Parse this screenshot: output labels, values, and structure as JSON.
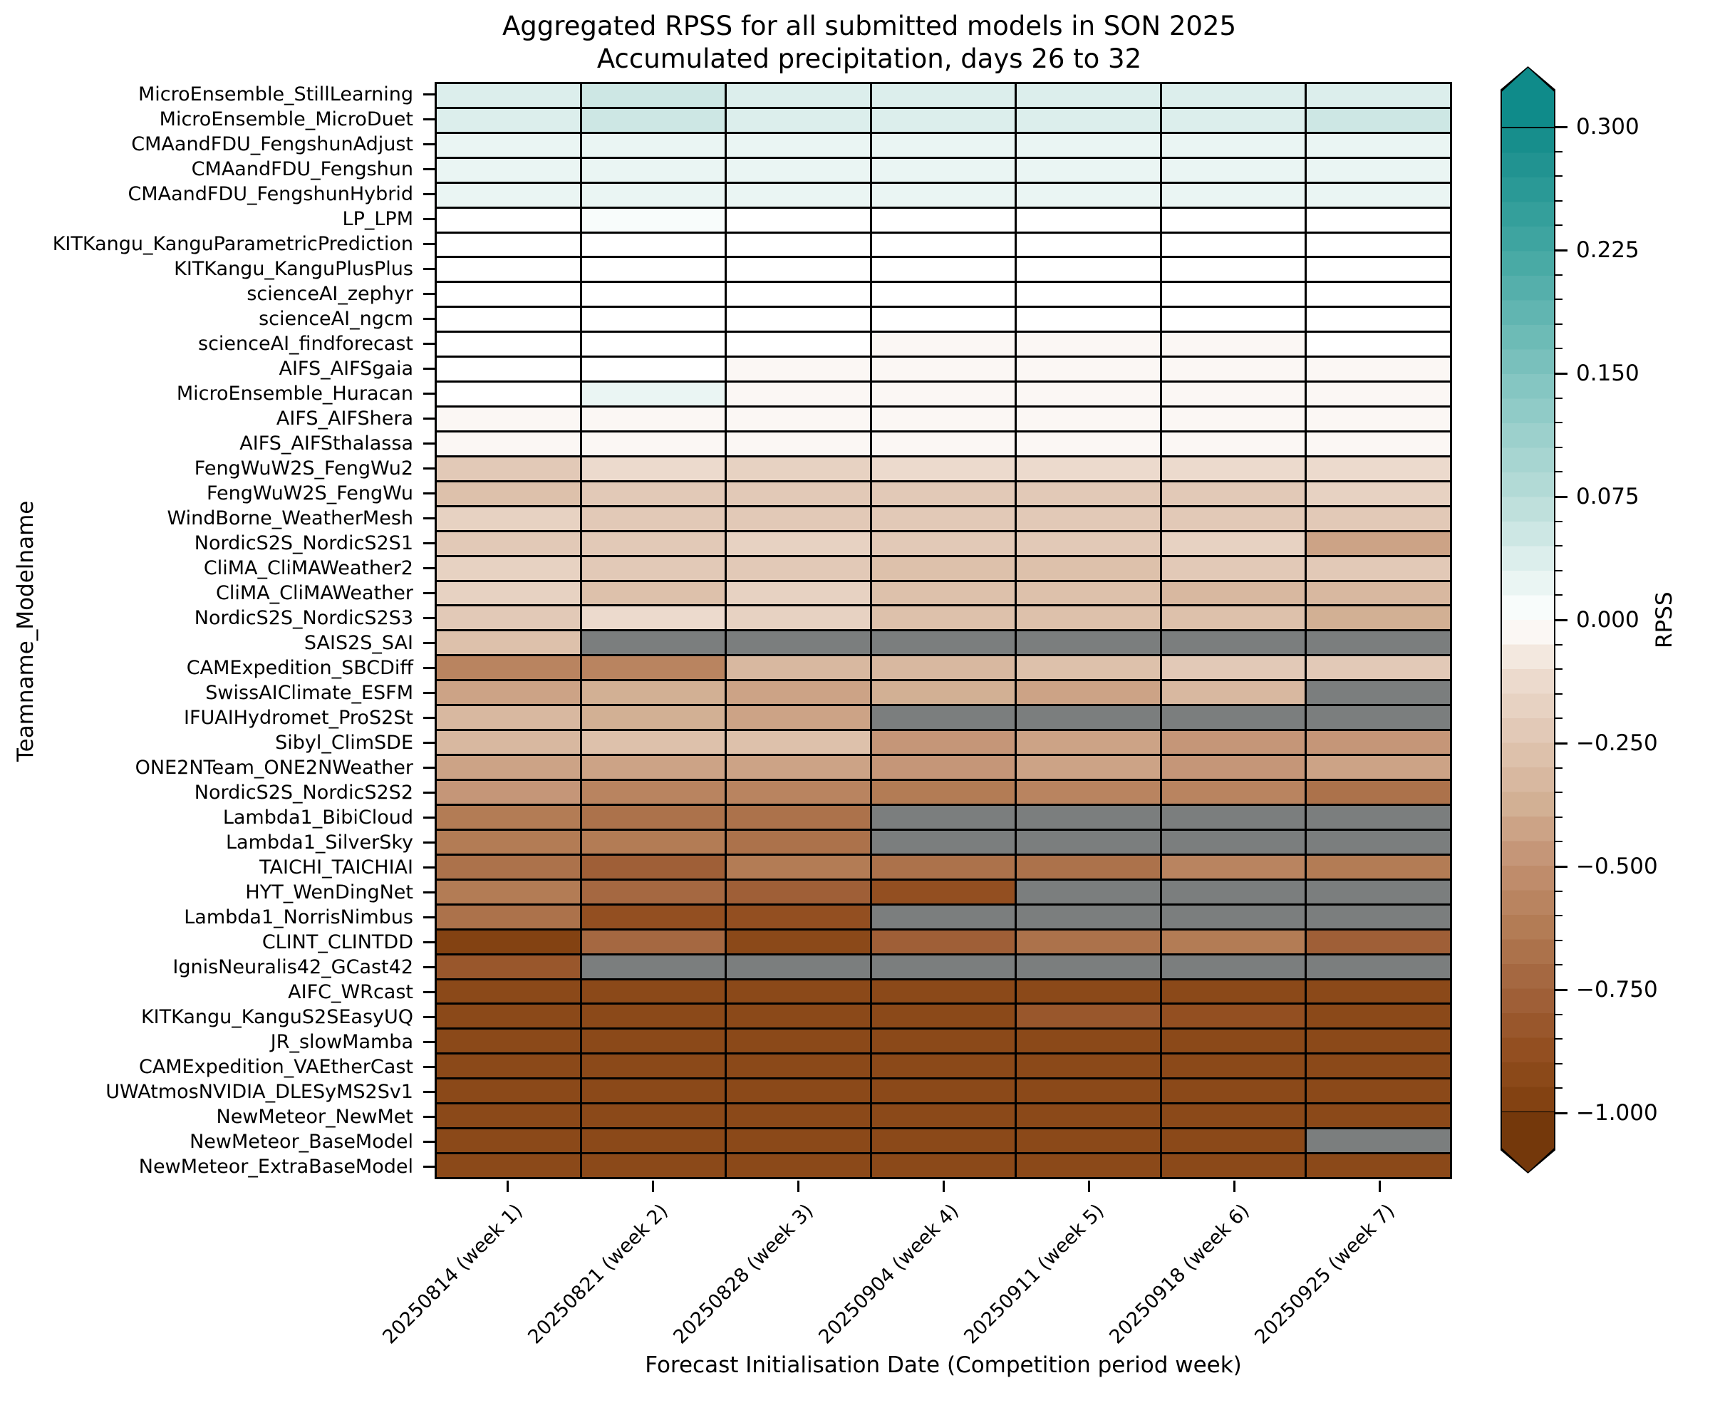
{
  "figure": {
    "title_line1": "Aggregated RPSS for all submitted models in SON 2025",
    "title_line2": "Accumulated precipitation, days 26 to 32"
  },
  "axes": {
    "x_label": "Forecast Initialisation Date (Competition period week)",
    "y_label": "Teamname_Modelname",
    "colorbar_label": "RPSS"
  },
  "colorbar": {
    "orientation": "vertical",
    "vmin": -1.0,
    "vcenter": 0.0,
    "vmax": 0.3,
    "steps_per_half": 20,
    "extend": "both",
    "major_ticks": [
      {
        "label": "0.300",
        "value": 0.3
      },
      {
        "label": "0.225",
        "value": 0.225
      },
      {
        "label": "0.150",
        "value": 0.15
      },
      {
        "label": "0.075",
        "value": 0.075
      },
      {
        "label": "0.000",
        "value": 0.0
      },
      {
        "label": "−0.250",
        "value": -0.25
      },
      {
        "label": "−0.500",
        "value": -0.5
      },
      {
        "label": "−0.750",
        "value": -0.75
      },
      {
        "label": "−1.000",
        "value": -1.0
      }
    ],
    "minor_ticks_per_interval": 4,
    "colors": {
      "positive_anchors": [
        [
          0.0,
          "#ffffff"
        ],
        [
          0.075,
          "#b8dcd8"
        ],
        [
          0.15,
          "#7fc3bf"
        ],
        [
          0.225,
          "#43a7a2"
        ],
        [
          0.3,
          "#128b8a"
        ]
      ],
      "negative_anchors": [
        [
          0.0,
          "#ffffff"
        ],
        [
          0.0625,
          "#f5ebe4"
        ],
        [
          0.125,
          "#ecdacd"
        ],
        [
          0.25,
          "#e0c5b1"
        ],
        [
          0.375,
          "#d2b094"
        ],
        [
          0.5,
          "#c29071"
        ],
        [
          0.625,
          "#b37c55"
        ],
        [
          0.75,
          "#a2633c"
        ],
        [
          0.875,
          "#934f21"
        ],
        [
          1.0,
          "#7f3f0e"
        ]
      ],
      "over_color": "#0f8b8a",
      "under_color": "#74380b",
      "missing_color": "#7b7e7e",
      "gridline_color": "#000000"
    }
  },
  "chart_data": {
    "type": "heatmap",
    "title": "Aggregated RPSS for all submitted models in SON 2025 — Accumulated precipitation, days 26 to 32",
    "xlabel": "Forecast Initialisation Date (Competition period week)",
    "ylabel": "Teamname_Modelname",
    "value_name": "RPSS",
    "missing_value": null,
    "x": [
      "20250814 (week 1)",
      "20250821 (week 2)",
      "20250828 (week 3)",
      "20250904 (week 4)",
      "20250911 (week 5)",
      "20250918 (week 6)",
      "20250925 (week 7)"
    ],
    "rows": [
      {
        "model": "MicroEnsemble_StillLearning",
        "values": [
          0.035,
          0.05,
          0.034,
          0.034,
          0.035,
          0.035,
          0.044
        ]
      },
      {
        "model": "MicroEnsemble_MicroDuet",
        "values": [
          0.038,
          0.056,
          0.038,
          0.04,
          0.038,
          0.038,
          0.045
        ]
      },
      {
        "model": "CMAandFDU_FengshunAdjust",
        "values": [
          0.022,
          0.022,
          0.02,
          0.022,
          0.022,
          0.02,
          0.024
        ]
      },
      {
        "model": "CMAandFDU_Fengshun",
        "values": [
          0.02,
          0.022,
          0.022,
          0.024,
          0.022,
          0.02,
          0.022
        ]
      },
      {
        "model": "CMAandFDU_FengshunHybrid",
        "values": [
          0.022,
          0.024,
          0.02,
          0.022,
          0.022,
          0.02,
          0.022
        ]
      },
      {
        "model": "LP_LPM",
        "values": [
          0.0,
          0.012,
          0.0,
          0.0,
          0.0,
          0.0,
          0.0
        ]
      },
      {
        "model": "KITKangu_KanguParametricPrediction",
        "values": [
          0.0,
          0.0,
          0.0,
          0.0,
          0.0,
          0.0,
          0.0
        ]
      },
      {
        "model": "KITKangu_KanguPlusPlus",
        "values": [
          0.0,
          0.0,
          0.0,
          0.0,
          0.0,
          0.0,
          0.0
        ]
      },
      {
        "model": "scienceAI_zephyr",
        "values": [
          0.0,
          0.0,
          0.0,
          0.0,
          0.0,
          0.0,
          0.0
        ]
      },
      {
        "model": "scienceAI_ngcm",
        "values": [
          0.0,
          0.0,
          0.0,
          0.0,
          0.0,
          0.0,
          0.0
        ]
      },
      {
        "model": "scienceAI_findforecast",
        "values": [
          0.0,
          0.0,
          0.0,
          -0.02,
          -0.022,
          -0.02,
          0.0
        ]
      },
      {
        "model": "AIFS_AIFSgaia",
        "values": [
          0.0,
          0.0,
          -0.02,
          -0.02,
          -0.02,
          -0.022,
          -0.02
        ]
      },
      {
        "model": "MicroEnsemble_Huracan",
        "values": [
          0.0,
          0.016,
          -0.02,
          -0.022,
          -0.02,
          -0.02,
          -0.022
        ]
      },
      {
        "model": "AIFS_AIFShera",
        "values": [
          -0.025,
          -0.03,
          -0.03,
          -0.035,
          -0.032,
          -0.03,
          -0.028
        ]
      },
      {
        "model": "AIFS_AIFSthalassa",
        "values": [
          -0.025,
          -0.028,
          -0.03,
          -0.032,
          -0.028,
          -0.028,
          -0.028
        ]
      },
      {
        "model": "FengWuW2S_FengWu2",
        "values": [
          -0.22,
          -0.14,
          -0.16,
          -0.13,
          -0.15,
          -0.13,
          -0.15
        ]
      },
      {
        "model": "FengWuW2S_FengWu",
        "values": [
          -0.27,
          -0.22,
          -0.21,
          -0.22,
          -0.22,
          -0.21,
          -0.17
        ]
      },
      {
        "model": "WindBorne_WeatherMesh",
        "values": [
          -0.16,
          -0.23,
          -0.23,
          -0.24,
          -0.23,
          -0.23,
          -0.23
        ]
      },
      {
        "model": "NordicS2S_NordicS2S1",
        "values": [
          -0.21,
          -0.21,
          -0.19,
          -0.22,
          -0.22,
          -0.19,
          -0.43
        ]
      },
      {
        "model": "CliMA_CliMAWeather2",
        "values": [
          -0.19,
          -0.21,
          -0.21,
          -0.27,
          -0.27,
          -0.21,
          -0.23
        ]
      },
      {
        "model": "CliMA_CliMAWeather",
        "values": [
          -0.17,
          -0.25,
          -0.16,
          -0.3,
          -0.28,
          -0.34,
          -0.32
        ]
      },
      {
        "model": "NordicS2S_NordicS2S3",
        "values": [
          -0.21,
          -0.15,
          -0.19,
          -0.3,
          -0.27,
          -0.26,
          -0.38
        ]
      },
      {
        "model": "SAIS2S_SAI",
        "values": [
          -0.26,
          null,
          null,
          null,
          null,
          null,
          null
        ]
      },
      {
        "model": "CAMExpedition_SBCDiff",
        "values": [
          -0.55,
          -0.58,
          -0.34,
          -0.32,
          -0.29,
          -0.21,
          -0.2
        ]
      },
      {
        "model": "SwissAIClimate_ESFM",
        "values": [
          -0.41,
          -0.36,
          -0.4,
          -0.37,
          -0.41,
          -0.32,
          null
        ]
      },
      {
        "model": "IFUAIHydromet_ProS2St",
        "values": [
          -0.32,
          -0.38,
          -0.44,
          null,
          null,
          null,
          null
        ]
      },
      {
        "model": "Sibyl_ClimSDE",
        "values": [
          -0.35,
          -0.3,
          -0.29,
          -0.46,
          -0.44,
          -0.46,
          -0.46
        ]
      },
      {
        "model": "ONE2NTeam_ONE2NWeather",
        "values": [
          -0.41,
          -0.41,
          -0.4,
          -0.45,
          -0.44,
          -0.49,
          -0.43
        ]
      },
      {
        "model": "NordicS2S_NordicS2S2",
        "values": [
          -0.48,
          -0.6,
          -0.6,
          -0.62,
          -0.6,
          -0.6,
          -0.66
        ]
      },
      {
        "model": "Lambda1_BibiCloud",
        "values": [
          -0.63,
          -0.67,
          -0.66,
          null,
          null,
          null,
          null
        ]
      },
      {
        "model": "Lambda1_SilverSky",
        "values": [
          -0.63,
          -0.64,
          -0.65,
          null,
          null,
          null,
          null
        ]
      },
      {
        "model": "TAICHI_TAICHIAI",
        "values": [
          -0.66,
          -0.76,
          -0.63,
          -0.67,
          -0.65,
          -0.6,
          -0.63
        ]
      },
      {
        "model": "HYT_WenDingNet",
        "values": [
          -0.64,
          -0.72,
          -0.76,
          -0.87,
          null,
          null,
          null
        ]
      },
      {
        "model": "Lambda1_NorrisNimbus",
        "values": [
          -0.67,
          -0.86,
          -0.86,
          null,
          null,
          null,
          null
        ]
      },
      {
        "model": "CLINT_CLINTDD",
        "values": [
          -0.99,
          -0.73,
          -0.92,
          -0.79,
          -0.69,
          -0.64,
          -0.78
        ]
      },
      {
        "model": "IgnisNeuralis42_GCast42",
        "values": [
          -0.84,
          null,
          null,
          null,
          null,
          null,
          null
        ]
      },
      {
        "model": "AIFC_WRcast",
        "values": [
          -0.93,
          -0.93,
          -0.93,
          -0.93,
          -0.93,
          -0.93,
          -0.93
        ]
      },
      {
        "model": "KITKangu_KanguS2SEasyUQ",
        "values": [
          -0.93,
          -0.93,
          -0.93,
          -0.93,
          -0.84,
          -0.89,
          -0.93
        ]
      },
      {
        "model": "JR_slowMamba",
        "values": [
          -0.93,
          -0.93,
          -0.93,
          -0.93,
          -0.93,
          -0.93,
          -0.93
        ]
      },
      {
        "model": "CAMExpedition_VAEtherCast",
        "values": [
          -0.94,
          -0.93,
          -0.93,
          -0.93,
          -0.93,
          -0.93,
          -0.93
        ]
      },
      {
        "model": "UWAtmosNVIDIA_DLESyMS2Sv1",
        "values": [
          -0.93,
          -0.93,
          -0.93,
          -0.93,
          -0.93,
          -0.93,
          -0.93
        ]
      },
      {
        "model": "NewMeteor_NewMet",
        "values": [
          -0.93,
          -0.93,
          -0.93,
          -0.93,
          -0.93,
          -0.93,
          -0.93
        ]
      },
      {
        "model": "NewMeteor_BaseModel",
        "values": [
          -0.93,
          -0.93,
          -0.93,
          -0.93,
          -0.93,
          -0.93,
          null
        ]
      },
      {
        "model": "NewMeteor_ExtraBaseModel",
        "values": [
          -0.93,
          -0.93,
          -0.93,
          -0.93,
          -0.93,
          -0.93,
          -0.93
        ]
      }
    ]
  }
}
